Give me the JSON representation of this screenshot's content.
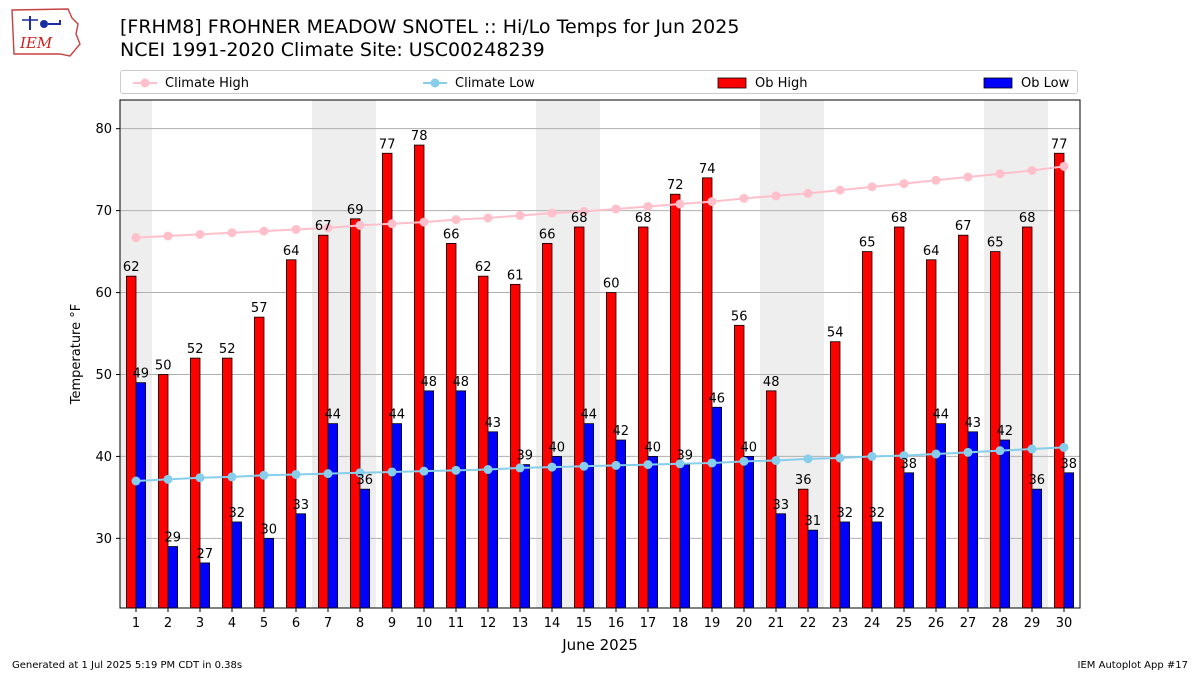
{
  "header": {
    "title_line1": "[FRHM8] FROHNER MEADOW SNOTEL :: Hi/Lo Temps for Jun 2025",
    "title_line2": "NCEI 1991-2020 Climate Site: USC00248239",
    "logo_text": "IEM"
  },
  "footer": {
    "generated": "Generated at 1 Jul 2025 5:19 PM CDT in 0.38s",
    "app": "IEM Autoplot App #17"
  },
  "colors": {
    "ob_high": "#ff0000",
    "ob_low": "#0000ff",
    "climate_high": "#ffc0cb",
    "climate_low": "#87ceeb",
    "weekend_band": "#eeeeee",
    "grid": "#b0b0b0"
  },
  "chart_data": {
    "type": "bar",
    "xlabel": "June 2025",
    "ylabel": "Temperature °F",
    "ylim": [
      21.5,
      83.5
    ],
    "yticks": [
      30,
      40,
      50,
      60,
      70,
      80
    ],
    "grid": "horizontal",
    "legend_placement": "top",
    "categories": [
      1,
      2,
      3,
      4,
      5,
      6,
      7,
      8,
      9,
      10,
      11,
      12,
      13,
      14,
      15,
      16,
      17,
      18,
      19,
      20,
      21,
      22,
      23,
      24,
      25,
      26,
      27,
      28,
      29,
      30
    ],
    "shaded_days": [
      1,
      7,
      8,
      14,
      15,
      21,
      22,
      28,
      29
    ],
    "series": [
      {
        "name": "Climate High",
        "kind": "line",
        "values": [
          66.7,
          66.9,
          67.1,
          67.3,
          67.5,
          67.7,
          67.9,
          68.2,
          68.4,
          68.6,
          68.9,
          69.1,
          69.4,
          69.7,
          69.9,
          70.2,
          70.5,
          70.8,
          71.1,
          71.5,
          71.8,
          72.1,
          72.5,
          72.9,
          73.3,
          73.7,
          74.1,
          74.5,
          74.9,
          75.4
        ]
      },
      {
        "name": "Climate Low",
        "kind": "line",
        "values": [
          37.0,
          37.2,
          37.4,
          37.5,
          37.7,
          37.8,
          37.9,
          38.0,
          38.1,
          38.2,
          38.3,
          38.4,
          38.6,
          38.7,
          38.8,
          38.9,
          39.0,
          39.1,
          39.2,
          39.4,
          39.5,
          39.7,
          39.8,
          40.0,
          40.1,
          40.3,
          40.5,
          40.7,
          40.9,
          41.1
        ]
      },
      {
        "name": "Ob High",
        "kind": "bar",
        "values": [
          62,
          50,
          52,
          52,
          57,
          64,
          67,
          69,
          77,
          78,
          66,
          62,
          61,
          66,
          68,
          60,
          68,
          72,
          74,
          56,
          48,
          36,
          54,
          65,
          68,
          64,
          67,
          65,
          68,
          77
        ]
      },
      {
        "name": "Ob Low",
        "kind": "bar",
        "values": [
          49,
          29,
          27,
          32,
          30,
          33,
          44,
          36,
          44,
          48,
          48,
          43,
          39,
          40,
          44,
          42,
          40,
          39,
          46,
          40,
          33,
          31,
          32,
          32,
          38,
          44,
          43,
          42,
          36,
          38
        ]
      }
    ]
  }
}
